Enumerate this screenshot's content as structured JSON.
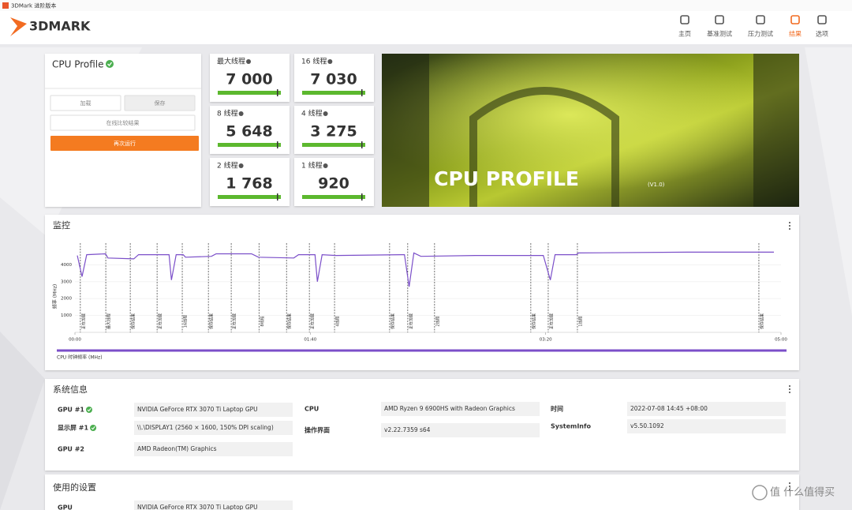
{
  "window_title": "3DMark 进阶版本",
  "header": {
    "logo": "3DMARK",
    "nav": [
      {
        "label": "主页",
        "active": false
      },
      {
        "label": "基准测试",
        "active": false
      },
      {
        "label": "压力测试",
        "active": false
      },
      {
        "label": "结果",
        "active": true
      },
      {
        "label": "选项",
        "active": false
      }
    ]
  },
  "profile": {
    "title": "CPU Profile",
    "buttons": [
      "加载",
      "保存",
      "在线比较结果",
      "再次运行"
    ]
  },
  "scores": [
    {
      "label": "最大线程",
      "score": "7 000"
    },
    {
      "label": "16 线程",
      "score": "7 030"
    },
    {
      "label": "8 线程",
      "score": "5 648"
    },
    {
      "label": "4 线程",
      "score": "3 275"
    },
    {
      "label": "2 线程",
      "score": "1 768"
    },
    {
      "label": "1 线程",
      "score": "920"
    }
  ],
  "banner": {
    "title": "CPU PROFILE",
    "version": "(V1.0)"
  },
  "monitor": {
    "title": "监控",
    "y_label": "频率 (MHz)",
    "ylim": [
      0,
      5000
    ],
    "yticks": [
      1000,
      2000,
      3000,
      4000
    ],
    "xlim": [
      0,
      300
    ],
    "xticks": [
      {
        "value": 0,
        "label": "00:00"
      },
      {
        "value": 100,
        "label": "01:40"
      },
      {
        "value": 200,
        "label": "03:20"
      },
      {
        "value": 300,
        "label": "05:00"
      }
    ],
    "series": [
      {
        "name": "CPU 时钟频率 (MHz)",
        "color": "#7b4fc9",
        "x": [
          1,
          3,
          5,
          13,
          14,
          25,
          27,
          40,
          41,
          43,
          46,
          47,
          58,
          60,
          75,
          78,
          93,
          95,
          102,
          103,
          105,
          111,
          140,
          142,
          144,
          147,
          170,
          199,
          202,
          204,
          213,
          214,
          260,
          297
        ],
        "values": [
          4550,
          3300,
          4600,
          4650,
          4400,
          4350,
          4600,
          4600,
          3100,
          4600,
          4600,
          4450,
          4500,
          4650,
          4650,
          4450,
          4400,
          4600,
          4600,
          3000,
          4600,
          4550,
          4600,
          2700,
          4700,
          4500,
          4550,
          4550,
          3100,
          4600,
          4600,
          4700,
          4750,
          4750
        ]
      }
    ],
    "markers": [
      {
        "x": 2.3,
        "label": "正在加载"
      },
      {
        "x": 13.1,
        "label": "最大线程"
      },
      {
        "x": 23.5,
        "label": "保存结果"
      },
      {
        "x": 34.9,
        "label": "正在加载"
      },
      {
        "x": 45.6,
        "label": "16线程"
      },
      {
        "x": 56.7,
        "label": "保存结果"
      },
      {
        "x": 66.4,
        "label": "正在加载"
      },
      {
        "x": 78.2,
        "label": "8线程"
      },
      {
        "x": 89.9,
        "label": "保存结果"
      },
      {
        "x": 99.6,
        "label": "正在加载"
      },
      {
        "x": 110.3,
        "label": "4线程"
      },
      {
        "x": 133.7,
        "label": "保存结果"
      },
      {
        "x": 141.4,
        "label": "正在加载"
      },
      {
        "x": 152.8,
        "label": "2线程"
      },
      {
        "x": 193.7,
        "label": "保存结果"
      },
      {
        "x": 201.1,
        "label": "正在加载"
      },
      {
        "x": 213.5,
        "label": "1线程"
      },
      {
        "x": 290.6,
        "label": "保存结果"
      }
    ]
  },
  "system_info": {
    "title": "系统信息",
    "columns": [
      [
        {
          "label": "GPU #1",
          "value": "NVIDIA GeForce RTX 3070 Ti Laptop GPU",
          "ok": true
        },
        {
          "label": "显示屏 #1",
          "value": "\\\\.\\DISPLAY1 (2560 × 1600, 150% DPI scaling)",
          "ok": true
        },
        {
          "label": "GPU #2",
          "value": "AMD Radeon(TM) Graphics",
          "ok": false
        }
      ],
      [
        {
          "label": "CPU",
          "value": "AMD Ryzen 9 6900HS with Radeon Graphics",
          "ok": false
        },
        {
          "label": "操作界面",
          "value": "v2.22.7359 s64",
          "ok": false
        }
      ],
      [
        {
          "label": "时间",
          "value": "2022-07-08 14:45 +08:00",
          "ok": false
        },
        {
          "label": "SystemInfo",
          "value": "v5.50.1092",
          "ok": false
        }
      ]
    ]
  },
  "settings": {
    "title": "使用的设置",
    "rows": [
      {
        "label": "GPU",
        "value": "NVIDIA GeForce RTX 3070 Ti Laptop GPU"
      }
    ]
  },
  "watermark": "值 什么值得买"
}
